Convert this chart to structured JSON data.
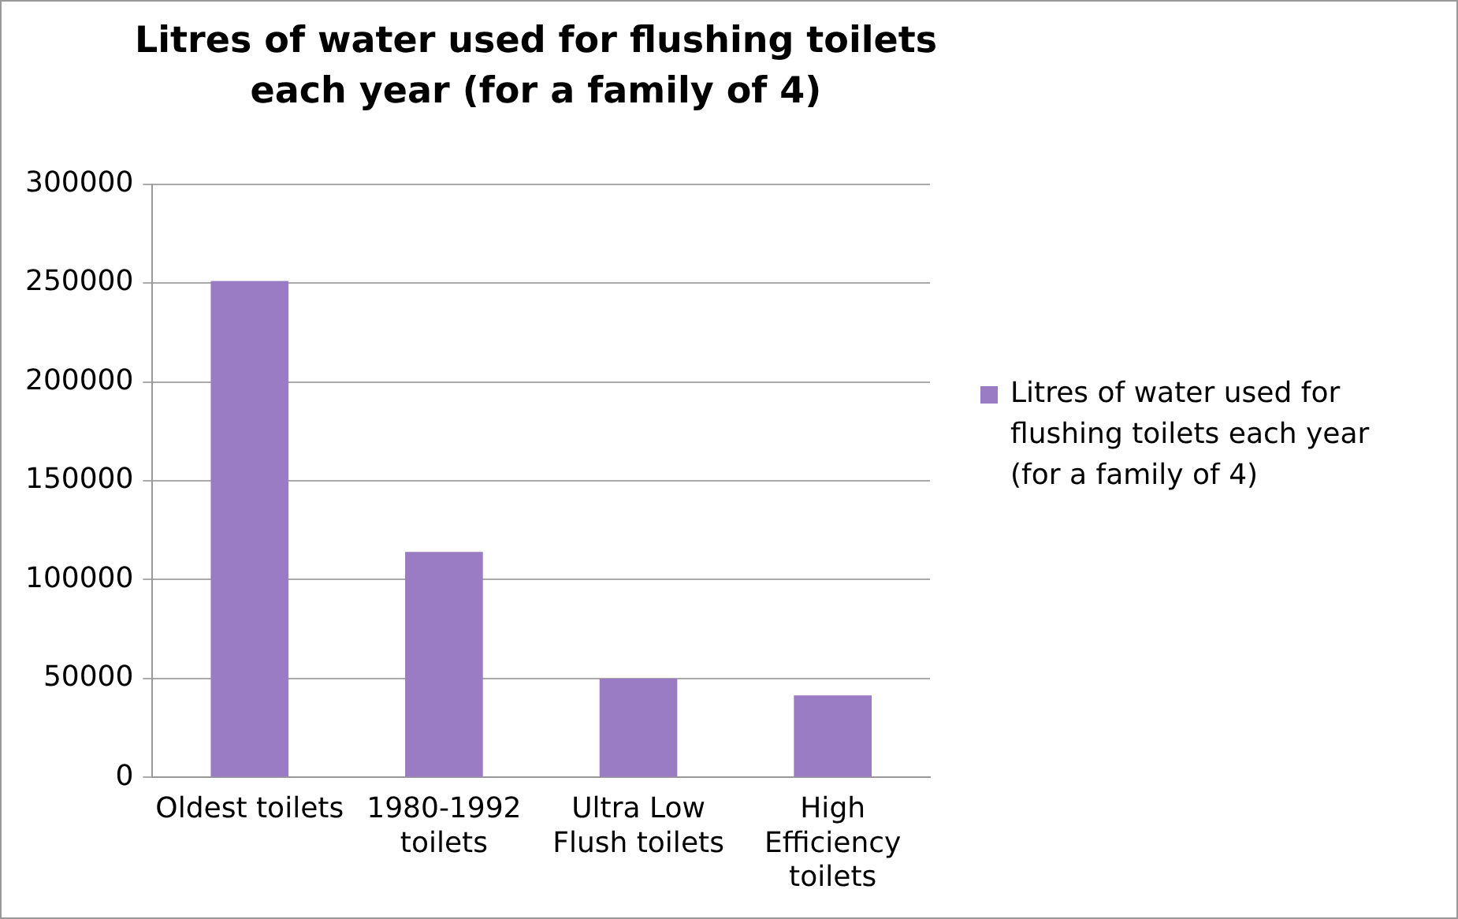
{
  "chart_data": {
    "type": "bar",
    "title": "Litres of water used for flushing toilets each year (for a family of 4)",
    "categories": [
      "Oldest toilets",
      "1980-1992 toilets",
      "Ultra Low Flush toilets",
      "High Efficiency toilets"
    ],
    "series": [
      {
        "name": "Litres of water used for flushing toilets each year (for a family of 4)",
        "color": "#9a7cc4",
        "values": [
          251000,
          114000,
          50000,
          41500
        ]
      }
    ],
    "ylim": [
      0,
      300000
    ],
    "yticks": [
      0,
      50000,
      100000,
      150000,
      200000,
      250000,
      300000
    ],
    "grid": "y",
    "legend": "right"
  }
}
